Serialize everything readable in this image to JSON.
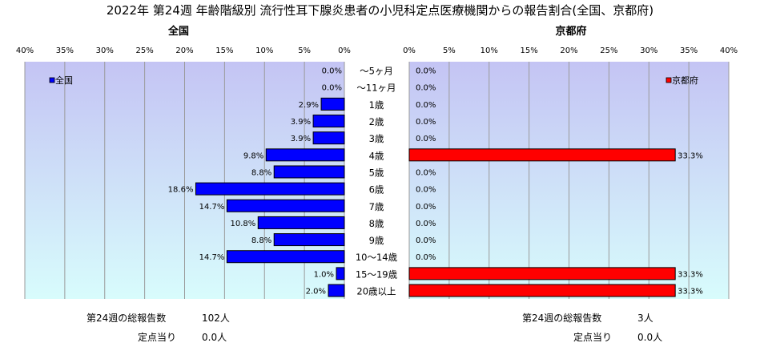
{
  "title": "2022年 第24週 年齢階級別 流行性耳下腺炎患者の小児科定点医療機関からの報告割合(全国、京都府)",
  "colors": {
    "national": "#0000ff",
    "kyoto": "#ff0000",
    "bg_top": "#c4c4f4",
    "bg_bottom": "#d8fcfc"
  },
  "chart_data": [
    {
      "type": "bar",
      "orientation": "horizontal",
      "direction": "right-to-left",
      "title": "全国",
      "categories": [
        "～5ヶ月",
        "～11ヶ月",
        "1歳",
        "2歳",
        "3歳",
        "4歳",
        "5歳",
        "6歳",
        "7歳",
        "8歳",
        "9歳",
        "10～14歳",
        "15～19歳",
        "20歳以上"
      ],
      "series": [
        {
          "name": "全国",
          "values": [
            0.0,
            0.0,
            2.9,
            3.9,
            3.9,
            9.8,
            8.8,
            18.6,
            14.7,
            10.8,
            8.8,
            14.7,
            1.0,
            2.0
          ]
        }
      ],
      "data_labels": [
        "0.0%",
        "0.0%",
        "2.9%",
        "3.9%",
        "3.9%",
        "9.8%",
        "8.8%",
        "18.6%",
        "14.7%",
        "10.8%",
        "8.8%",
        "14.7%",
        "1.0%",
        "2.0%"
      ],
      "xlim": [
        0,
        40
      ],
      "xticks": [
        "40%",
        "35%",
        "30%",
        "25%",
        "20%",
        "15%",
        "10%",
        "5%",
        "0%"
      ],
      "legend_position": "top-left",
      "grid": true
    },
    {
      "type": "bar",
      "orientation": "horizontal",
      "direction": "left-to-right",
      "title": "京都府",
      "categories": [
        "～5ヶ月",
        "～11ヶ月",
        "1歳",
        "2歳",
        "3歳",
        "4歳",
        "5歳",
        "6歳",
        "7歳",
        "8歳",
        "9歳",
        "10～14歳",
        "15～19歳",
        "20歳以上"
      ],
      "series": [
        {
          "name": "京都府",
          "values": [
            0.0,
            0.0,
            0.0,
            0.0,
            0.0,
            33.3,
            0.0,
            0.0,
            0.0,
            0.0,
            0.0,
            0.0,
            33.3,
            33.3
          ]
        }
      ],
      "data_labels": [
        "0.0%",
        "0.0%",
        "0.0%",
        "0.0%",
        "0.0%",
        "33.3%",
        "0.0%",
        "0.0%",
        "0.0%",
        "0.0%",
        "0.0%",
        "0.0%",
        "33.3%",
        "33.3%"
      ],
      "xlim": [
        0,
        40
      ],
      "xticks": [
        "0%",
        "5%",
        "10%",
        "15%",
        "20%",
        "25%",
        "30%",
        "35%",
        "40%"
      ],
      "legend_position": "top-right",
      "grid": true
    }
  ],
  "summary": {
    "national": {
      "total_label": "第24週の総報告数",
      "total_value": "102人",
      "per_label": "定点当り",
      "per_value": "0.0人"
    },
    "kyoto": {
      "total_label": "第24週の総報告数",
      "total_value": "3人",
      "per_label": "定点当り",
      "per_value": "0.0人"
    }
  }
}
